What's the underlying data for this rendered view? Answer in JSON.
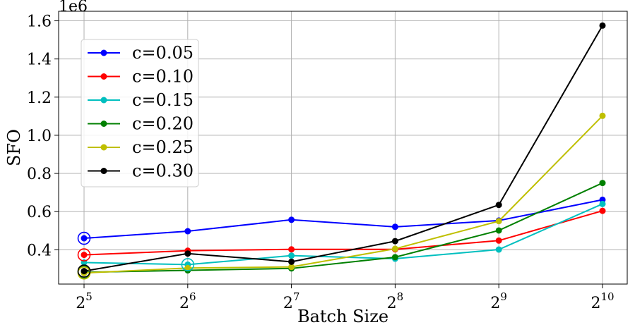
{
  "chart_data": {
    "type": "line",
    "xlabel": "Batch Size",
    "ylabel": "SFO",
    "y_scale_label": "1e6",
    "x_tick_labels": [
      {
        "base": "2",
        "exp": "5"
      },
      {
        "base": "2",
        "exp": "6"
      },
      {
        "base": "2",
        "exp": "7"
      },
      {
        "base": "2",
        "exp": "8"
      },
      {
        "base": "2",
        "exp": "9"
      },
      {
        "base": "2",
        "exp": "10"
      }
    ],
    "x": [
      32,
      64,
      128,
      256,
      512,
      1024
    ],
    "x_scale": "log2",
    "y_ticks": [
      "0.4",
      "0.6",
      "0.8",
      "1.0",
      "1.2",
      "1.4",
      "1.6"
    ],
    "y_tick_values": [
      0.4,
      0.6,
      0.8,
      1.0,
      1.2,
      1.4,
      1.6
    ],
    "ylim": [
      0.22,
      1.65
    ],
    "grid": true,
    "legend_position": "upper-left",
    "series": [
      {
        "name": "c=0.05",
        "color": "#0000ff",
        "values": [
          0.46,
          0.497,
          0.557,
          0.52,
          0.553,
          0.662
        ]
      },
      {
        "name": "c=0.10",
        "color": "#ff0000",
        "values": [
          0.373,
          0.395,
          0.402,
          0.402,
          0.448,
          0.604
        ]
      },
      {
        "name": "c=0.15",
        "color": "#00bfbf",
        "values": [
          0.333,
          0.322,
          0.369,
          0.353,
          0.401,
          0.64
        ]
      },
      {
        "name": "c=0.20",
        "color": "#008000",
        "values": [
          0.282,
          0.292,
          0.302,
          0.361,
          0.501,
          0.75
        ]
      },
      {
        "name": "c=0.25",
        "color": "#bfbf00",
        "values": [
          0.278,
          0.304,
          0.31,
          0.405,
          0.55,
          1.102
        ]
      },
      {
        "name": "c=0.30",
        "color": "#000000",
        "values": [
          0.288,
          0.38,
          0.337,
          0.445,
          0.635,
          1.575
        ]
      }
    ],
    "highlighted_points": [
      {
        "series": "c=0.05",
        "x": 32,
        "y": 0.46
      },
      {
        "series": "c=0.10",
        "x": 32,
        "y": 0.373
      },
      {
        "series": "c=0.15",
        "x": 64,
        "y": 0.322
      },
      {
        "series": "c=0.20",
        "x": 32,
        "y": 0.282
      },
      {
        "series": "c=0.25",
        "x": 32,
        "y": 0.278
      },
      {
        "series": "c=0.30",
        "x": 32,
        "y": 0.288
      }
    ]
  }
}
